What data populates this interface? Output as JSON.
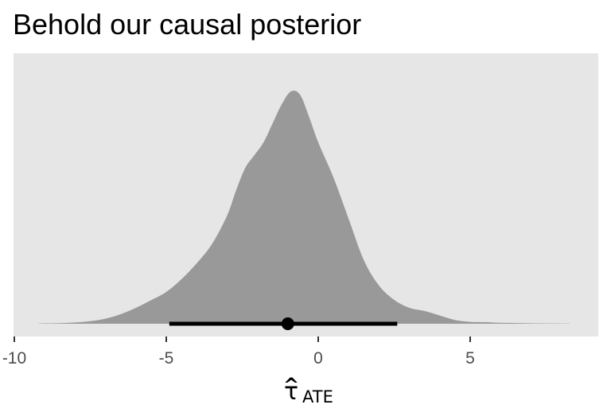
{
  "chart_data": {
    "type": "area",
    "title": "Behold our causal posterior",
    "xlabel": {
      "symbol": "τ",
      "hat": "^",
      "subscript": "ATE"
    },
    "ylabel": "",
    "xlim": [
      -10,
      9.2
    ],
    "xticks": [
      -10,
      -5,
      0,
      5
    ],
    "xtick_labels": [
      "-10",
      "-5",
      "0",
      "5"
    ],
    "y_axis_shown": false,
    "grid": false,
    "legend": "none",
    "series": [
      {
        "type": "density",
        "x": [
          -9.2,
          -8.5,
          -8.0,
          -7.5,
          -7.0,
          -6.5,
          -6.0,
          -5.5,
          -5.0,
          -4.5,
          -4.0,
          -3.5,
          -3.0,
          -2.7,
          -2.4,
          -2.1,
          -1.8,
          -1.5,
          -1.2,
          -0.9,
          -0.6,
          -0.3,
          0.0,
          0.5,
          1.0,
          1.5,
          2.0,
          2.5,
          3.0,
          3.5,
          4.0,
          4.5,
          5.0,
          5.5,
          6.0,
          7.0,
          8.3
        ],
        "y": [
          0.001,
          0.002,
          0.004,
          0.008,
          0.016,
          0.03,
          0.05,
          0.074,
          0.1,
          0.14,
          0.19,
          0.25,
          0.34,
          0.42,
          0.49,
          0.53,
          0.57,
          0.63,
          0.69,
          0.73,
          0.72,
          0.65,
          0.57,
          0.46,
          0.33,
          0.2,
          0.12,
          0.075,
          0.05,
          0.04,
          0.026,
          0.012,
          0.006,
          0.005,
          0.003,
          0.0015,
          0.0005
        ]
      }
    ],
    "point_interval": {
      "point": -1.0,
      "lower": -4.9,
      "upper": 2.6
    },
    "colors": {
      "panel": "#e6e6e6",
      "density": "#999999",
      "interval": "#000000",
      "tick_label": "#4d4d4d"
    }
  }
}
